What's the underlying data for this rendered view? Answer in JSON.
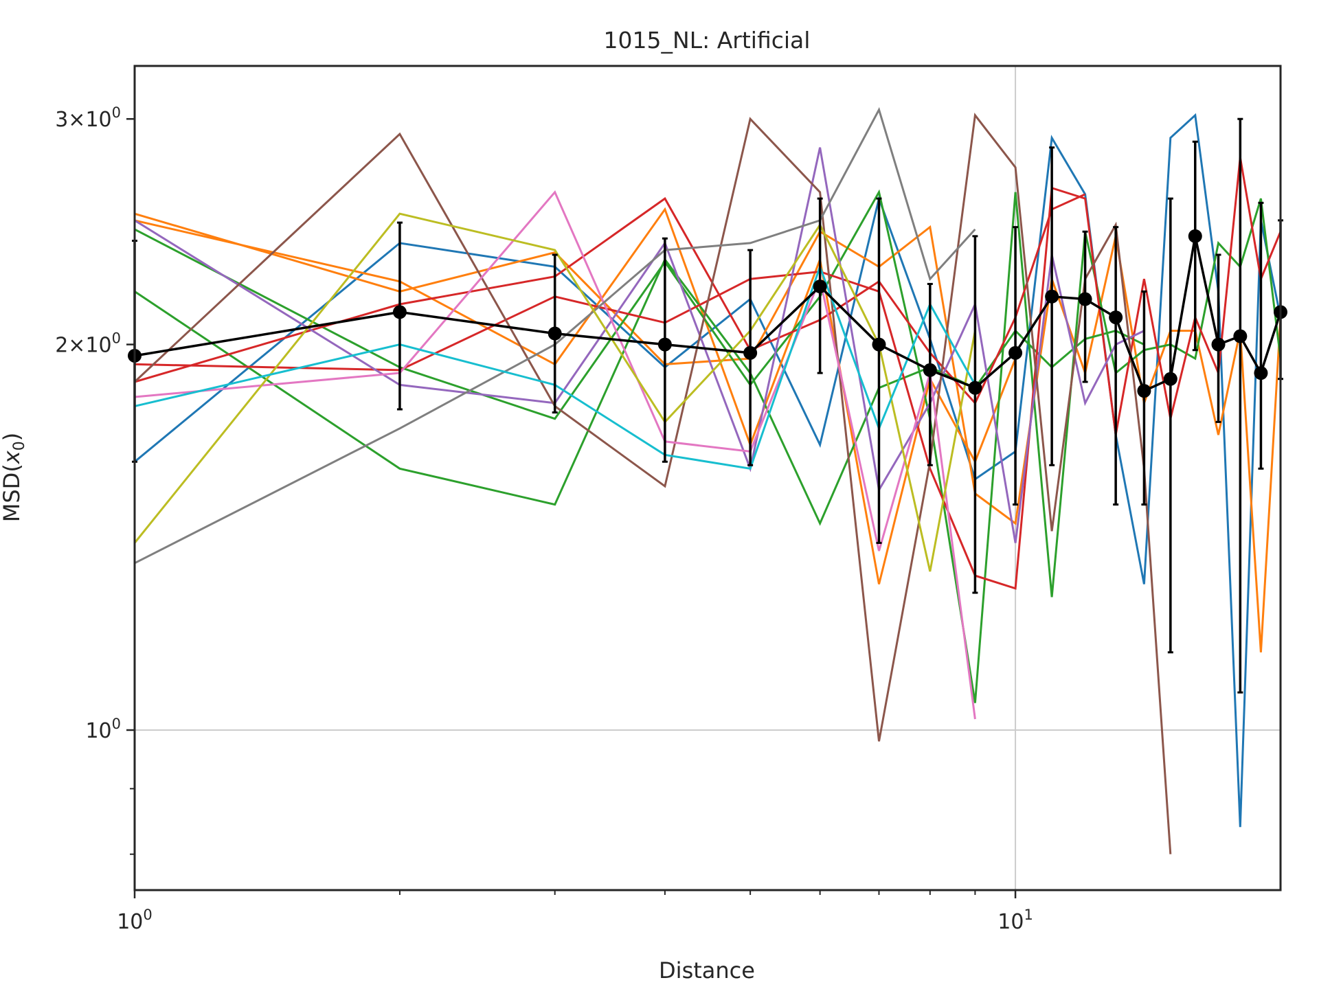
{
  "chart_data": {
    "type": "line",
    "title": "1015_NL: Artificial",
    "xlabel": "Distance",
    "ylabel": "MSD(x0)",
    "xscale": "log",
    "yscale": "log",
    "xlim": [
      1,
      20
    ],
    "ylim": [
      0.75,
      3.3
    ],
    "grid": true,
    "legend": "none",
    "x_ticks": [
      {
        "value": 1,
        "base": "10",
        "exp": "0"
      },
      {
        "value": 10,
        "base": "10",
        "exp": "1"
      }
    ],
    "y_ticks": [
      {
        "value": 1,
        "mantissa": "",
        "base": "10",
        "exp": "0"
      },
      {
        "value": 2,
        "mantissa": "2×",
        "base": "10",
        "exp": "0"
      },
      {
        "value": 3,
        "mantissa": "3×",
        "base": "10",
        "exp": "0"
      }
    ],
    "series": [
      {
        "color": "#1f77b4",
        "x": [
          1,
          2,
          3,
          4,
          5,
          6,
          7,
          8,
          9,
          10,
          11,
          12,
          13,
          14,
          15,
          16,
          17,
          18,
          19,
          20
        ],
        "y": [
          1.62,
          2.4,
          2.3,
          1.92,
          2.17,
          1.67,
          2.6,
          2.02,
          1.57,
          1.65,
          2.9,
          2.62,
          1.7,
          1.3,
          2.9,
          3.02,
          2.2,
          0.84,
          2.5,
          2.1
        ]
      },
      {
        "color": "#ff7f0e",
        "x": [
          1,
          2,
          3,
          4,
          5,
          6,
          7,
          8,
          9,
          10,
          11,
          12,
          13,
          14,
          15,
          16,
          17,
          18,
          19,
          20
        ],
        "y": [
          2.53,
          2.2,
          2.36,
          1.93,
          1.95,
          2.45,
          2.3,
          2.47,
          1.53,
          1.45,
          2.25,
          1.9,
          2.43,
          1.8,
          2.05,
          2.05,
          1.7,
          2.05,
          1.15,
          2.1
        ]
      },
      {
        "color": "#ff7f0e",
        "x": [
          1,
          2,
          3,
          4,
          5,
          6,
          7,
          8,
          9,
          10
        ],
        "y": [
          2.5,
          2.24,
          1.93,
          2.55,
          1.67,
          2.33,
          1.3,
          1.88,
          1.62,
          1.95
        ]
      },
      {
        "color": "#2ca02c",
        "x": [
          1,
          2,
          3,
          4,
          5,
          6,
          7,
          8,
          9,
          10,
          11,
          12,
          13,
          14,
          15,
          16,
          17,
          18,
          19,
          20
        ],
        "y": [
          2.46,
          1.92,
          1.75,
          2.32,
          1.86,
          2.18,
          2.63,
          1.75,
          1.05,
          2.63,
          1.27,
          2.45,
          1.9,
          1.98,
          2.0,
          1.95,
          2.4,
          2.3,
          2.6,
          1.95
        ]
      },
      {
        "color": "#2ca02c",
        "x": [
          1,
          2,
          3,
          4,
          5,
          6,
          7,
          8,
          9,
          10,
          11,
          12,
          13,
          14
        ],
        "y": [
          2.2,
          1.6,
          1.5,
          2.33,
          1.9,
          1.45,
          1.85,
          1.92,
          1.85,
          2.05,
          1.92,
          2.02,
          2.05,
          2.0
        ]
      },
      {
        "color": "#d62728",
        "x": [
          1,
          2,
          3,
          4,
          5,
          6,
          7,
          8,
          9,
          10,
          11,
          12,
          13,
          14,
          15,
          16,
          17,
          18,
          19,
          20
        ],
        "y": [
          1.93,
          1.91,
          2.18,
          2.08,
          2.25,
          2.28,
          2.2,
          1.6,
          1.32,
          1.29,
          2.65,
          2.6,
          1.7,
          2.25,
          1.75,
          2.1,
          1.9,
          2.8,
          2.25,
          2.45
        ]
      },
      {
        "color": "#d62728",
        "x": [
          1,
          2,
          3,
          4,
          5,
          6,
          7,
          8,
          9,
          10,
          11,
          12
        ],
        "y": [
          1.87,
          2.15,
          2.26,
          2.6,
          1.98,
          2.09,
          2.24,
          1.97,
          1.8,
          2.1,
          2.55,
          2.62
        ]
      },
      {
        "color": "#9467bd",
        "x": [
          1,
          2,
          3,
          4,
          5,
          6,
          7,
          8,
          9,
          10,
          11,
          12,
          13,
          14
        ],
        "y": [
          2.5,
          1.86,
          1.8,
          2.4,
          1.6,
          2.85,
          1.54,
          1.8,
          2.15,
          1.4,
          2.35,
          1.8,
          2.0,
          2.05
        ]
      },
      {
        "color": "#8c564b",
        "x": [
          1,
          2,
          3,
          4,
          5,
          6,
          7,
          8,
          9,
          10,
          11,
          12,
          13,
          14,
          15
        ],
        "y": [
          1.87,
          2.92,
          1.79,
          1.55,
          3.0,
          2.63,
          0.98,
          1.62,
          3.02,
          2.75,
          1.43,
          2.25,
          2.48,
          1.6,
          0.8
        ]
      },
      {
        "color": "#e377c2",
        "x": [
          1,
          2,
          3,
          4,
          5,
          6,
          7,
          8,
          9
        ],
        "y": [
          1.82,
          1.9,
          2.63,
          1.68,
          1.65,
          2.25,
          1.38,
          1.9,
          1.02
        ]
      },
      {
        "color": "#7f7f7f",
        "x": [
          1,
          2,
          3,
          4,
          5,
          6,
          7,
          8,
          9
        ],
        "y": [
          1.35,
          1.72,
          2.0,
          2.37,
          2.4,
          2.5,
          3.05,
          2.25,
          2.46
        ]
      },
      {
        "color": "#bcbd22",
        "x": [
          1,
          2,
          3,
          4,
          5,
          6,
          7,
          8,
          9
        ],
        "y": [
          1.4,
          2.53,
          2.37,
          1.74,
          2.05,
          2.48,
          2.0,
          1.33,
          2.05
        ]
      },
      {
        "color": "#17becf",
        "x": [
          1,
          2,
          3,
          4,
          5,
          6,
          7,
          8,
          9
        ],
        "y": [
          1.79,
          2.0,
          1.86,
          1.64,
          1.6,
          2.3,
          1.72,
          2.15,
          1.86
        ]
      }
    ],
    "mean_series": {
      "color": "#000000",
      "x": [
        1,
        2,
        3,
        4,
        5,
        6,
        7,
        8,
        9,
        10,
        11,
        12,
        13,
        14,
        15,
        16,
        17,
        18,
        19,
        20
      ],
      "y": [
        1.96,
        2.12,
        2.04,
        2.0,
        1.97,
        2.22,
        2.0,
        1.91,
        1.85,
        1.97,
        2.18,
        2.17,
        2.1,
        1.84,
        1.88,
        2.43,
        2.0,
        2.03,
        1.9,
        2.12
      ],
      "err_low": [
        1.62,
        1.78,
        1.77,
        1.62,
        1.61,
        1.9,
        1.4,
        1.61,
        1.28,
        1.5,
        1.61,
        1.87,
        1.5,
        1.5,
        1.15,
        1.98,
        1.74,
        1.07,
        1.6,
        1.88
      ],
      "err_high": [
        2.41,
        2.49,
        2.35,
        2.42,
        2.37,
        2.6,
        2.6,
        2.23,
        2.43,
        2.47,
        2.85,
        2.45,
        2.47,
        2.2,
        2.6,
        2.88,
        2.35,
        3.0,
        2.58,
        2.5
      ]
    }
  }
}
